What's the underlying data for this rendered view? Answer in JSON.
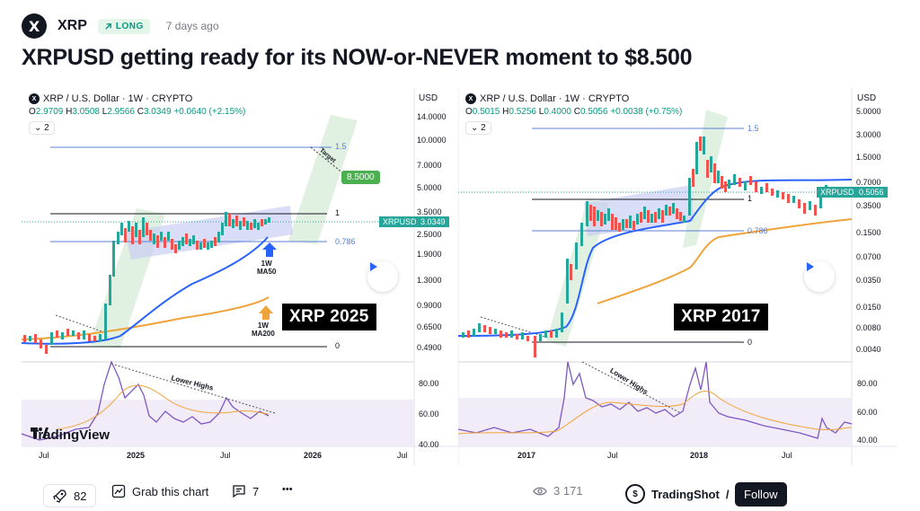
{
  "header": {
    "symbol_logo": "X",
    "symbol": "XRP",
    "badge_icon": "arrow-up-right-icon",
    "badge": "LONG",
    "posted": "7 days ago",
    "title": "XRPUSD getting ready for its NOW-or-NEVER moment to $8.500"
  },
  "left_chart": {
    "instrument": "XRP / U.S. Dollar · 1W · CRYPTO",
    "ohlc": {
      "o_label": "O",
      "o": "2.9709",
      "h_label": "H",
      "h": "3.0508",
      "l_label": "L",
      "l": "2.9566",
      "c_label": "C",
      "c": "3.0349",
      "change": "+0.0640 (+2.15%)"
    },
    "indicator_count": "2",
    "currency": "USD",
    "price_scale": [
      "14.0000",
      "10.0000",
      "7.0000",
      "5.0000",
      "3.5000",
      "2.5000",
      "1.9000",
      "1.3000",
      "0.9000",
      "0.6500",
      "0.4900"
    ],
    "rsi_scale": [
      "80.00",
      "60.00",
      "40.00"
    ],
    "time_scale": [
      "Jul",
      "2025",
      "Jul",
      "2026",
      "Jul"
    ],
    "fib_labels": [
      "1.5",
      "1",
      "0.786",
      "0"
    ],
    "target_label": "Target",
    "target_value": "8.5000",
    "price_tag_name": "XRPUSD",
    "price_tag_value": "3.0349",
    "ma50_label_1": "1W",
    "ma50_label_2": "MA50",
    "ma200_label_1": "1W",
    "ma200_label_2": "MA200",
    "lower_highs": "Lower Highs",
    "big_label": "XRP 2025",
    "watermark": "TradingView"
  },
  "right_chart": {
    "instrument": "XRP / U.S. Dollar · 1W · CRYPTO",
    "ohlc": {
      "o_label": "O",
      "o": "0.5015",
      "h_label": "H",
      "h": "0.5256",
      "l_label": "L",
      "l": "0.4000",
      "c_label": "C",
      "c": "0.5056",
      "change": "+0.0038 (+0.75%)"
    },
    "indicator_count": "2",
    "currency": "USD",
    "price_scale": [
      "5.0000",
      "3.0000",
      "1.5000",
      "0.7000",
      "0.3500",
      "0.1500",
      "0.0700",
      "0.0350",
      "0.0150",
      "0.0080",
      "0.0040"
    ],
    "rsi_scale": [
      "80.00",
      "60.00",
      "40.00"
    ],
    "time_scale": [
      "2017",
      "Jul",
      "2018",
      "Jul"
    ],
    "fib_labels": [
      "1.5",
      "1",
      "0.786",
      "0"
    ],
    "price_tag_name": "XRPUSD",
    "price_tag_value": "0.5056",
    "lower_highs": "Lower Highs",
    "big_label": "XRP 2017"
  },
  "footer": {
    "boosts": "82",
    "grab_chart": "Grab this chart",
    "comments": "7",
    "more": "•••",
    "views": "3 171",
    "author": "TradingShot",
    "author_logo": "$",
    "follow": "Follow"
  },
  "colors": {
    "up": "#26a69a",
    "down": "#ef5350",
    "fib_blue": "#5b7fd6",
    "ma50": "#2962ff",
    "ma200": "#f0a33a",
    "rsi": "#7e57c2",
    "box": "#c5cbf2",
    "channel": "#c8e6c9"
  }
}
